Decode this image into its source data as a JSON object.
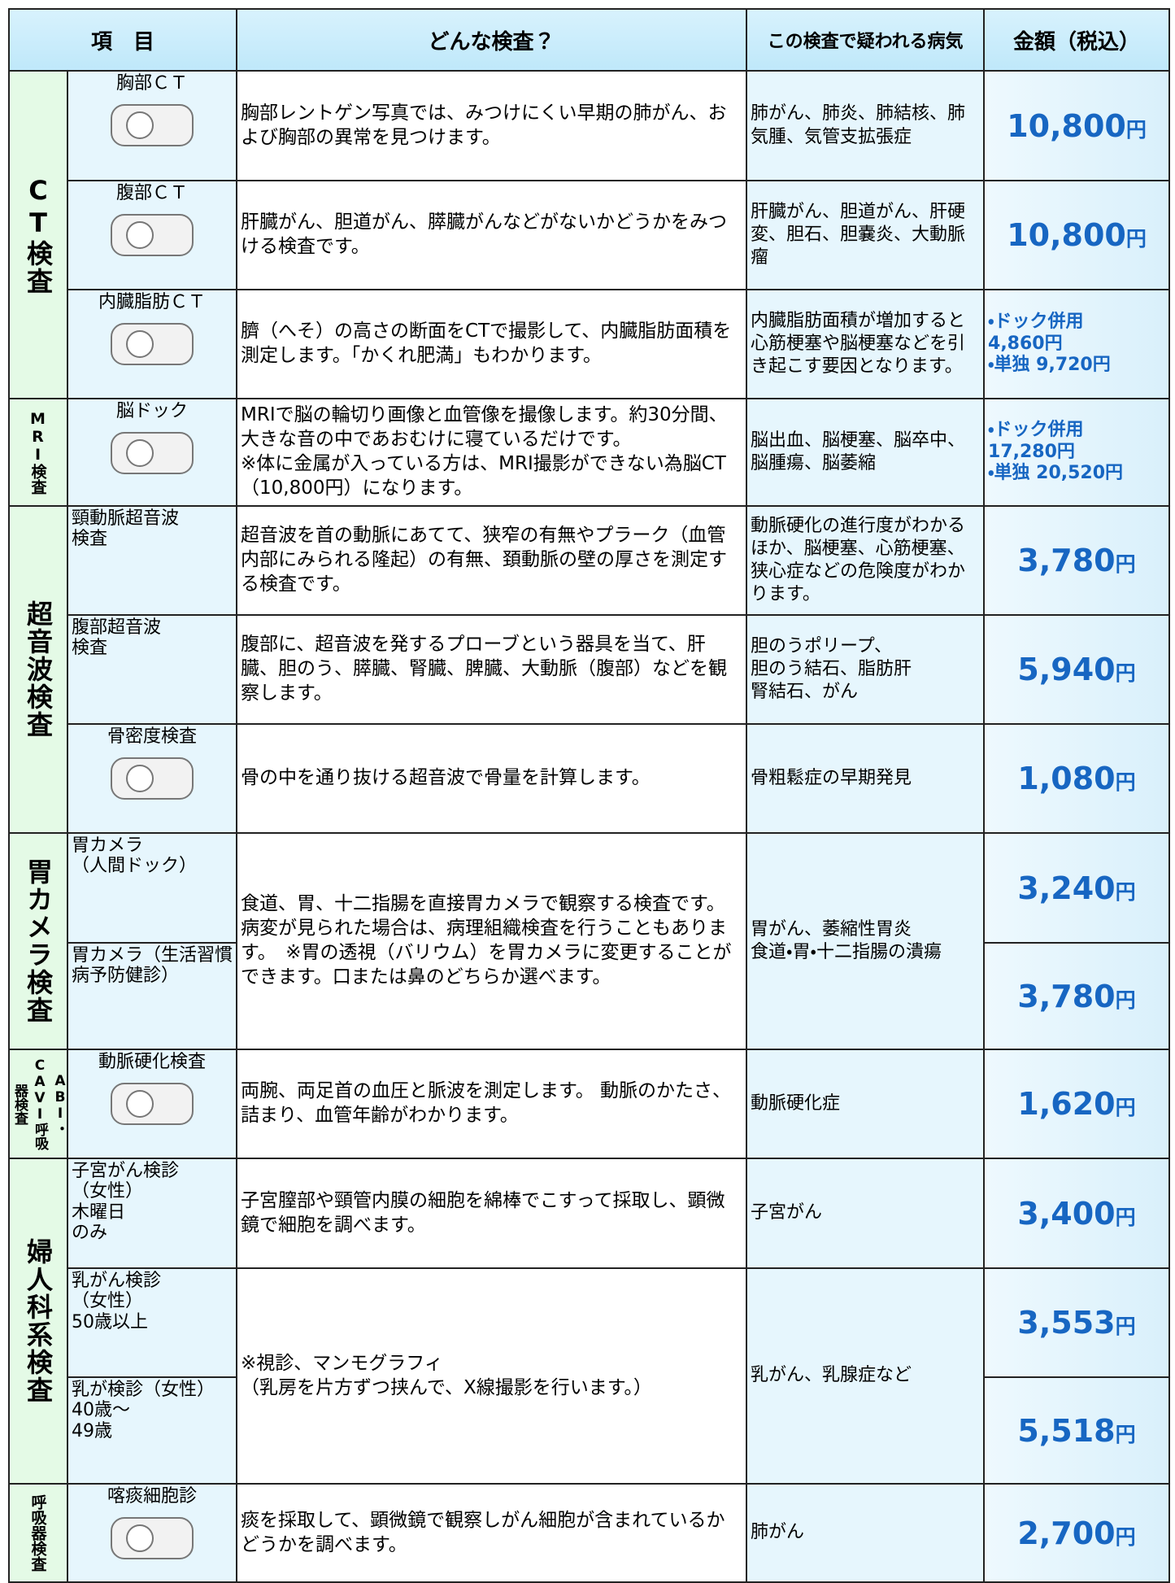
{
  "header": {
    "columns": [
      "項　目",
      "どんな検査？",
      "この検査で疑われる病気",
      "金額（税込）"
    ]
  },
  "sections": [
    {
      "category": "CT検査",
      "rows": [
        {
          "item": "胸部ＣＴ",
          "description": "胸部レントゲン写真では、みつけにくい早期の肺がん、および胸部の異常を見つけます。",
          "disease": "肺がん、肺炎、肺結核、肺気腫、気管支拡張症",
          "price": {
            "amount": "10,800",
            "unit": "円"
          }
        },
        {
          "item": "腹部ＣＴ",
          "description": "肝臓がん、胆道がん、膵臓がんなどがないかどうかをみつける検査です。",
          "disease": "肝臓がん、胆道がん、肝硬変、胆石、胆嚢炎、大動脈瘤",
          "price": {
            "amount": "10,800",
            "unit": "円"
          }
        },
        {
          "item": "内臓脂肪ＣＴ",
          "description": "臍（へそ）の高さの断面をCTで撮影して、内臓脂肪面積を測定します。「かくれ肥満」もわかります。",
          "disease": "内臓脂肪面積が増加すると心筋梗塞や脳梗塞などを引き起こす要因となります。",
          "price_lines": [
            "・ドック併用",
            "4,860円",
            "・単独 9,720円"
          ]
        }
      ]
    },
    {
      "category": "MRI検査",
      "rows": [
        {
          "item": "脳ドック",
          "description": "MRIで脳の輪切り画像と血管像を撮像します。約30分間、大きな音の中であおむけに寝ているだけです。\n※体に金属が入っている方は、MRI撮影ができない為脳CT（10,800円）になります。",
          "disease": "脳出血、脳梗塞、脳卒中、脳腫瘍、脳萎縮",
          "price_lines": [
            "・ドック併用",
            "17,280円",
            "・単独 20,520円"
          ]
        }
      ]
    },
    {
      "category": "超音波検査",
      "rows": [
        {
          "item": "頸動脈超音波\n検査",
          "description": "超音波を首の動脈にあてて、狭窄の有無やプラーク（血管内部にみられる隆起）の有無、頚動脈の壁の厚さを測定する検査です。",
          "disease": "動脈硬化の進行度がわかるほか、脳梗塞、心筋梗塞、狭心症などの危険度がわかります。",
          "price": {
            "amount": "3,780",
            "unit": "円"
          }
        },
        {
          "item": "腹部超音波\n検査",
          "description": "腹部に、超音波を発するプローブという器具を当て、肝臓、胆のう、膵臓、腎臓、脾臓、大動脈（腹部）などを観察します。",
          "disease": "胆のうポリープ、\n胆のう結石、脂肪肝\n腎結石、がん",
          "price": {
            "amount": "5,940",
            "unit": "円"
          }
        },
        {
          "item": "骨密度検査",
          "description": "骨の中を通り抜ける超音波で骨量を計算します。",
          "disease": "骨粗鬆症の早期発見",
          "price": {
            "amount": "1,080",
            "unit": "円"
          }
        }
      ]
    },
    {
      "category": "胃カメラ検査",
      "rows": [
        {
          "item": "胃カメラ\n（人間ドック）",
          "description": "食道、胃、十二指腸を直接胃カメラで観察する検査です。病変が見られた場合は、病理組織検査を行うこともあります。　※胃の透視（バリウム）を胃カメラに変更することができます。口または鼻のどちらか選べます。",
          "disease": "胃がん、萎縮性胃炎\n食道・胃・十二指腸の潰瘍",
          "price": {
            "amount": "3,240",
            "unit": "円"
          }
        },
        {
          "item": "胃カメラ（生活習慣病予防健診）",
          "price": {
            "amount": "3,780",
            "unit": "円"
          }
        }
      ]
    },
    {
      "category": "ABI・CAVI呼吸器検査",
      "rows": [
        {
          "item": "動脈硬化検査",
          "description": "両腕、両足首の血圧と脈波を測定します。 動脈のかたさ、詰まり、血管年齢がわかります。",
          "disease": "動脈硬化症",
          "price": {
            "amount": "1,620",
            "unit": "円"
          }
        }
      ]
    },
    {
      "category": "婦人科系検査",
      "rows": [
        {
          "item": "子宮がん検診\n（女性）\n木曜日\nのみ",
          "description": "子宮膣部や頸管内膜の細胞を綿棒でこすって採取し、顕微鏡で細胞を調べます。",
          "disease": "子宮がん",
          "price": {
            "amount": "3,400",
            "unit": "円"
          }
        },
        {
          "item": "乳がん検診\n（女性）\n50歳以上",
          "description": "※視診、マンモグラフィ\n（乳房を片方ずつ挟んで、X線撮影を行います。）",
          "disease": "乳がん、乳腺症など",
          "price": {
            "amount": "3,553",
            "unit": "円"
          }
        },
        {
          "item": "乳が検診（女性）\n40歳～\n49歳",
          "price": {
            "amount": "5,518",
            "unit": "円"
          }
        }
      ]
    },
    {
      "category": "呼吸器検査",
      "rows": [
        {
          "item": "喀痰細胞診",
          "description": "痰を採取して、顕微鏡で観察しがん細胞が含まれているかどうかを調べます。",
          "disease": "肺がん",
          "price": {
            "amount": "2,700",
            "unit": "円"
          }
        }
      ]
    }
  ]
}
